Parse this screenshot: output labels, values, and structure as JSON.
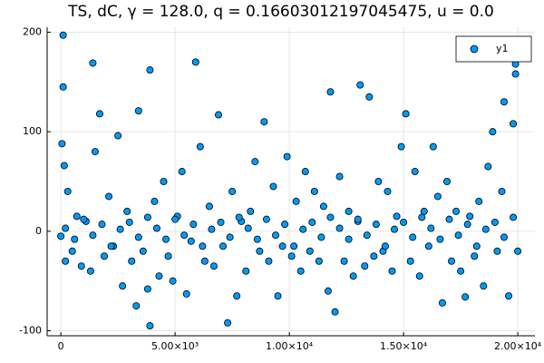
{
  "chart_data": {
    "type": "scatter",
    "title": "TS, dC, γ = 128.0, q = 0.16603012197045475, u = 0.0",
    "xlim": [
      -600,
      20750
    ],
    "ylim": [
      -105,
      205
    ],
    "xticks": [
      0,
      {
        "value": 5000,
        "label": "5.00×10³"
      },
      {
        "value": 10000,
        "label": "1.00×10⁴"
      },
      {
        "value": 15000,
        "label": "1.50×10⁴"
      },
      {
        "value": 20000,
        "label": "2.00×10⁴"
      }
    ],
    "yticks": [
      -100,
      0,
      100,
      200
    ],
    "grid": true,
    "legend": "top-right",
    "series": [
      {
        "name": "y1",
        "color": "#009af9",
        "x": [
          0,
          50,
          100,
          100,
          150,
          200,
          300,
          500,
          700,
          900,
          1100,
          1300,
          1400,
          1500,
          1700,
          1900,
          2100,
          2300,
          2500,
          2700,
          2900,
          3100,
          3300,
          3400,
          3600,
          3800,
          3900,
          3900,
          4100,
          4300,
          4500,
          4700,
          4900,
          5100,
          5300,
          5500,
          5700,
          5900,
          6100,
          6300,
          6500,
          6700,
          6900,
          7100,
          7300,
          7500,
          7700,
          7900,
          8100,
          8300,
          8500,
          8700,
          8900,
          9100,
          9300,
          9500,
          9700,
          9900,
          10100,
          10300,
          10500,
          10700,
          10900,
          11100,
          11300,
          11500,
          11700,
          11800,
          12000,
          12200,
          12400,
          12600,
          12800,
          13000,
          13100,
          13300,
          13500,
          13700,
          13900,
          14100,
          14300,
          14500,
          14700,
          14900,
          15100,
          15300,
          15500,
          15700,
          15900,
          16100,
          16300,
          16500,
          16700,
          16900,
          17100,
          17300,
          17500,
          17700,
          17900,
          18100,
          18300,
          18500,
          18700,
          18900,
          19100,
          19300,
          19400,
          19600,
          19800,
          19900,
          19900,
          20000,
          200,
          600,
          1000,
          1400,
          1800,
          2200,
          2600,
          3000,
          3400,
          3800,
          4200,
          4600,
          5000,
          5400,
          5800,
          6200,
          6600,
          7000,
          7400,
          7800,
          8200,
          8600,
          9000,
          9400,
          9800,
          10200,
          10600,
          11000,
          11400,
          11800,
          12200,
          12600,
          13000,
          13400,
          13800,
          14200,
          14600,
          15000,
          15400,
          15800,
          16200,
          16600,
          17000,
          17400,
          17800,
          18200,
          18600,
          19000,
          19400,
          19800
        ],
        "values": [
          -5,
          88,
          197,
          145,
          66,
          -30,
          40,
          -20,
          15,
          -35,
          10,
          -40,
          169,
          80,
          118,
          -25,
          35,
          -15,
          96,
          -55,
          20,
          -30,
          -75,
          121,
          -20,
          -58,
          162,
          -95,
          30,
          -45,
          50,
          -25,
          -50,
          15,
          60,
          -63,
          -10,
          170,
          85,
          -30,
          25,
          -35,
          117,
          -15,
          -92,
          40,
          -65,
          10,
          -40,
          20,
          70,
          -20,
          110,
          -30,
          45,
          -65,
          -15,
          75,
          -25,
          30,
          -40,
          60,
          -20,
          40,
          -30,
          25,
          -60,
          140,
          -81,
          55,
          -30,
          20,
          -45,
          10,
          147,
          -35,
          135,
          -25,
          50,
          -20,
          40,
          -40,
          15,
          85,
          118,
          -30,
          60,
          -45,
          20,
          -15,
          85,
          35,
          -72,
          50,
          -30,
          20,
          -40,
          -66,
          15,
          -25,
          30,
          -55,
          65,
          100,
          -20,
          40,
          130,
          -65,
          108,
          168,
          158,
          -20,
          3,
          -8,
          12,
          -4,
          7,
          -15,
          2,
          9,
          -6,
          14,
          3,
          -8,
          12,
          -4,
          7,
          -15,
          2,
          9,
          -6,
          14,
          3,
          -8,
          12,
          -4,
          7,
          -15,
          2,
          9,
          -6,
          14,
          3,
          -8,
          12,
          -4,
          7,
          -15,
          2,
          9,
          -6,
          14,
          3,
          -8,
          12,
          -4,
          7,
          -15,
          2,
          9,
          -6,
          14
        ]
      }
    ]
  }
}
